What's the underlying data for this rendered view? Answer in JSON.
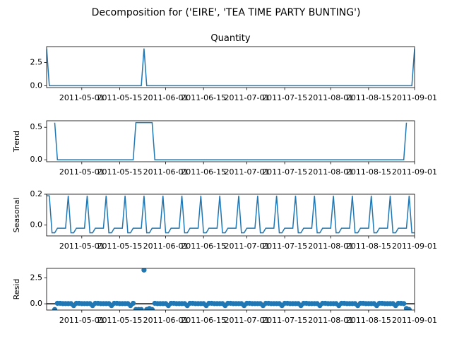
{
  "figure": {
    "suptitle": "Decomposition for ('EIRE', 'TEA TIME PARTY BUNTING')"
  },
  "colors": {
    "line": "#1f77b4",
    "axis": "#000000",
    "background": "#ffffff"
  },
  "chart_data": [
    {
      "type": "line",
      "title": "Quantity",
      "ylabel": "",
      "x_start": "2011-04-18",
      "x_end": "2011-09-01",
      "xlim_dates": [
        "2011-04-18",
        "2011-09-01"
      ],
      "ylim": [
        -0.2,
        4.2
      ],
      "yticks": [
        0.0,
        2.5
      ],
      "ytick_labels": [
        "0.0",
        "2.5"
      ],
      "xticks": [
        "2011-05-01",
        "2011-05-15",
        "2011-06-01",
        "2011-06-15",
        "2011-07-01",
        "2011-07-15",
        "2011-08-01",
        "2011-08-15",
        "2011-09-01"
      ],
      "xtick_labels": [
        "2011-05-01",
        "2011-05-15",
        "2011-06-01",
        "2011-06-15",
        "2011-07-01",
        "2011-07-15",
        "2011-08-01",
        "2011-08-15",
        "2011-09-01"
      ],
      "points": [
        {
          "x": "2011-04-18",
          "y": 4
        },
        {
          "x": "2011-04-19",
          "y": 0
        },
        {
          "x": "2011-05-23",
          "y": 0
        },
        {
          "x": "2011-05-24",
          "y": 4
        },
        {
          "x": "2011-05-25",
          "y": 0
        },
        {
          "x": "2011-08-31",
          "y": 0
        },
        {
          "x": "2011-09-01",
          "y": 4
        }
      ]
    },
    {
      "type": "line",
      "title": "",
      "ylabel": "Trend",
      "ylim": [
        -0.03,
        0.6
      ],
      "yticks": [
        0.0,
        0.5
      ],
      "ytick_labels": [
        "0.0",
        "0.5"
      ],
      "xticks": [
        "2011-05-01",
        "2011-05-15",
        "2011-06-01",
        "2011-06-15",
        "2011-07-01",
        "2011-07-15",
        "2011-08-01",
        "2011-08-15",
        "2011-09-01"
      ],
      "xtick_labels": [
        "2011-05-01",
        "2011-05-15",
        "2011-06-01",
        "2011-06-15",
        "2011-07-01",
        "2011-07-15",
        "2011-08-01",
        "2011-08-15",
        "2011-09-01"
      ],
      "points": [
        {
          "x": "2011-04-21",
          "y": 0.571
        },
        {
          "x": "2011-04-22",
          "y": 0
        },
        {
          "x": "2011-05-20",
          "y": 0
        },
        {
          "x": "2011-05-21",
          "y": 0.571
        },
        {
          "x": "2011-05-27",
          "y": 0.571
        },
        {
          "x": "2011-05-28",
          "y": 0
        },
        {
          "x": "2011-08-28",
          "y": 0
        },
        {
          "x": "2011-08-29",
          "y": 0.571
        }
      ]
    },
    {
      "type": "line",
      "title": "",
      "ylabel": "Seasonal",
      "ylim": [
        -0.07,
        0.2
      ],
      "yticks": [
        0.0,
        0.2
      ],
      "ytick_labels": [
        "0.0",
        "0.2"
      ],
      "xticks": [
        "2011-05-01",
        "2011-05-15",
        "2011-06-01",
        "2011-06-15",
        "2011-07-01",
        "2011-07-15",
        "2011-08-01",
        "2011-08-15",
        "2011-09-01"
      ],
      "xtick_labels": [
        "2011-05-01",
        "2011-05-15",
        "2011-06-01",
        "2011-06-15",
        "2011-07-01",
        "2011-07-15",
        "2011-08-01",
        "2011-08-15",
        "2011-09-01"
      ],
      "period_days": 7,
      "weekly_pattern": [
        0.19,
        -0.05,
        -0.05,
        -0.02,
        -0.02,
        -0.02,
        -0.02
      ],
      "pattern_start": "2011-04-19"
    },
    {
      "type": "scatter",
      "title": "",
      "ylabel": "Resid",
      "ylim": [
        -0.6,
        3.4
      ],
      "yticks": [
        0.0,
        2.5
      ],
      "ytick_labels": [
        "0.0",
        "2.5"
      ],
      "xticks": [
        "2011-05-01",
        "2011-05-15",
        "2011-06-01",
        "2011-06-15",
        "2011-07-01",
        "2011-07-15",
        "2011-08-01",
        "2011-08-15",
        "2011-09-01"
      ],
      "xtick_labels": [
        "2011-05-01",
        "2011-05-15",
        "2011-06-01",
        "2011-06-15",
        "2011-07-01",
        "2011-07-15",
        "2011-08-01",
        "2011-08-15",
        "2011-09-01"
      ],
      "baseline": 0,
      "points_range": [
        "2011-04-21",
        "2011-08-29"
      ],
      "default_weekly_resid": [
        -0.17,
        0.05,
        0.05,
        0.02,
        0.02,
        0.02,
        0.02
      ],
      "overrides": [
        {
          "x": "2011-04-21",
          "y": -0.55
        },
        {
          "x": "2011-05-21",
          "y": -0.55
        },
        {
          "x": "2011-05-22",
          "y": -0.55
        },
        {
          "x": "2011-05-23",
          "y": -0.55
        },
        {
          "x": "2011-05-24",
          "y": 3.24
        },
        {
          "x": "2011-05-25",
          "y": -0.55
        },
        {
          "x": "2011-05-26",
          "y": -0.45
        },
        {
          "x": "2011-05-27",
          "y": -0.55
        },
        {
          "x": "2011-08-29",
          "y": -0.45
        },
        {
          "x": "2011-08-30",
          "y": -0.55
        }
      ]
    }
  ]
}
